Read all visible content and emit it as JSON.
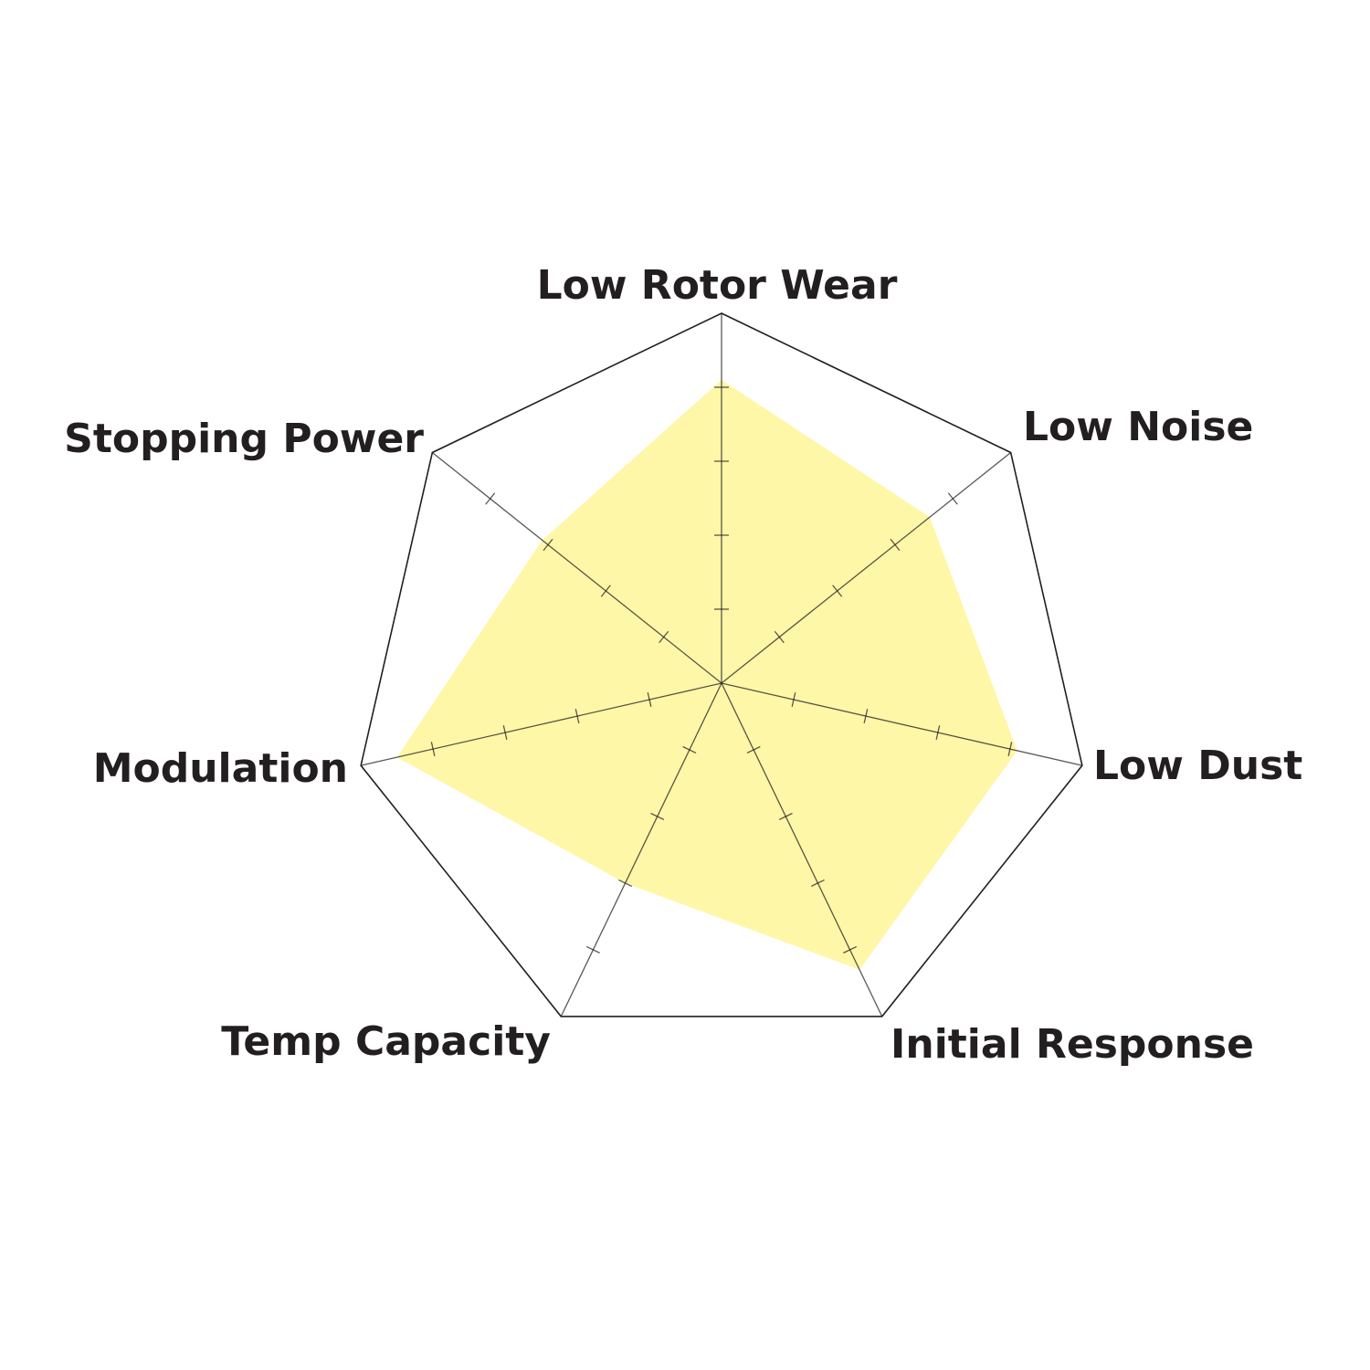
{
  "chart_data": {
    "type": "radar",
    "title": "",
    "axes": [
      "Low Rotor Wear",
      "Low Noise",
      "Low Dust",
      "Initial Response",
      "Temp Capacity",
      "Modulation",
      "Stopping Power"
    ],
    "range": [
      0,
      5
    ],
    "tick_levels": [
      1,
      2,
      3,
      4,
      5
    ],
    "series": [
      {
        "values": [
          4.1,
          3.6,
          4.1,
          4.3,
          3.0,
          4.5,
          3.1
        ],
        "color": "#fef7a8"
      }
    ],
    "grid_color": "#231f20",
    "legend": "none"
  }
}
